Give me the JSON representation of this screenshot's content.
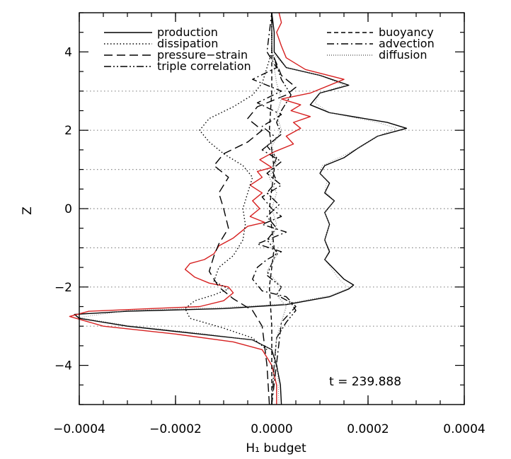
{
  "chart_data": {
    "type": "line",
    "xlabel": "H₁ budget",
    "ylabel": "Z",
    "xlim": [
      -0.0004,
      0.0004
    ],
    "ylim": [
      -5,
      5
    ],
    "x_ticks": [
      -0.0004,
      -0.0002,
      0.0,
      0.0002,
      0.0004
    ],
    "x_tick_labels": [
      "−0.0004",
      "−0.0002",
      "0.0000",
      "0.0002",
      "0.0004"
    ],
    "y_ticks": [
      -4,
      -2,
      0,
      2,
      4
    ],
    "y_tick_labels": [
      "−4",
      "−2",
      "0",
      "2",
      "4"
    ],
    "reference_lines_z": [
      -3,
      -2,
      -1,
      0,
      1,
      2,
      3
    ],
    "annotation": "t  =  239.888",
    "legend_placement": "top",
    "legend": [
      {
        "name": "production",
        "dash": "solid",
        "column": "left"
      },
      {
        "name": "dissipation",
        "dash": "dotted",
        "column": "left"
      },
      {
        "name": "pressure−strain",
        "dash": "long-dash",
        "column": "left"
      },
      {
        "name": "triple correlation",
        "dash": "dash-dot-dot",
        "column": "left"
      },
      {
        "name": "buoyancy",
        "dash": "short-dash",
        "column": "right"
      },
      {
        "name": "advection",
        "dash": "dash-dot",
        "column": "right"
      },
      {
        "name": "diffusion",
        "dash": "fine-dotted",
        "column": "right"
      }
    ],
    "series": [
      {
        "key": "production",
        "color": "#000000",
        "dash": "solid",
        "points": [
          [
            2e-05,
            -5.0
          ],
          [
            1.8e-05,
            -4.5
          ],
          [
            1e-05,
            -4.0
          ],
          [
            0.0,
            -3.6
          ],
          [
            -4e-05,
            -3.35
          ],
          [
            -0.00015,
            -3.2
          ],
          [
            -0.0003,
            -3.0
          ],
          [
            -0.0004,
            -2.8
          ],
          [
            -0.00041,
            -2.7
          ],
          [
            -0.0003,
            -2.62
          ],
          [
            -0.0001,
            -2.55
          ],
          [
            3e-05,
            -2.45
          ],
          [
            0.00012,
            -2.25
          ],
          [
            0.00016,
            -2.05
          ],
          [
            0.00017,
            -1.95
          ],
          [
            0.00015,
            -1.8
          ],
          [
            0.00011,
            -1.3
          ],
          [
            0.00012,
            -1.1
          ],
          [
            0.00011,
            -0.8
          ],
          [
            0.00012,
            -0.4
          ],
          [
            0.00011,
            -0.1
          ],
          [
            0.00013,
            0.2
          ],
          [
            0.00011,
            0.4
          ],
          [
            0.00012,
            0.65
          ],
          [
            0.0001,
            0.9
          ],
          [
            0.00011,
            1.1
          ],
          [
            0.00015,
            1.3
          ],
          [
            0.00018,
            1.55
          ],
          [
            0.00022,
            1.85
          ],
          [
            0.00028,
            2.05
          ],
          [
            0.00024,
            2.2
          ],
          [
            0.00012,
            2.45
          ],
          [
            8e-05,
            2.65
          ],
          [
            0.0001,
            2.95
          ],
          [
            0.00016,
            3.15
          ],
          [
            0.0001,
            3.4
          ],
          [
            3e-05,
            3.6
          ],
          [
            5e-06,
            4.0
          ],
          [
            5e-06,
            4.5
          ],
          [
            0.0,
            5.0
          ]
        ]
      },
      {
        "key": "production-alt",
        "color": "#777777",
        "dash": "fine-dotted",
        "width": 0.8,
        "points": [
          [
            1.5e-05,
            -5.0
          ],
          [
            1.2e-05,
            -4.0
          ],
          [
            0.0,
            -3.6
          ],
          [
            -4e-05,
            -3.35
          ],
          [
            -0.00015,
            -3.18
          ],
          [
            -0.0003,
            -2.98
          ],
          [
            -0.0004,
            -2.78
          ],
          [
            -0.0003,
            -2.6
          ],
          [
            -0.0001,
            -2.52
          ],
          [
            3e-05,
            -2.43
          ],
          [
            0.00012,
            -2.22
          ],
          [
            0.00016,
            -2.03
          ],
          [
            0.00014,
            -1.8
          ],
          [
            0.00011,
            -1.3
          ],
          [
            0.00012,
            -1.05
          ],
          [
            0.00011,
            -0.8
          ],
          [
            0.00012,
            -0.4
          ],
          [
            0.00011,
            -0.1
          ],
          [
            0.00013,
            0.2
          ],
          [
            0.00011,
            0.45
          ],
          [
            0.000115,
            0.7
          ],
          [
            0.0001,
            0.9
          ],
          [
            0.000105,
            1.1
          ],
          [
            0.00014,
            1.3
          ],
          [
            0.00018,
            1.55
          ],
          [
            0.00022,
            1.85
          ],
          [
            0.00026,
            2.05
          ],
          [
            0.00022,
            2.2
          ],
          [
            0.00012,
            2.45
          ],
          [
            9e-05,
            2.7
          ],
          [
            0.0001,
            2.95
          ],
          [
            0.00015,
            3.15
          ],
          [
            0.0001,
            3.4
          ],
          [
            3e-05,
            3.6
          ],
          [
            0.0,
            4.0
          ],
          [
            0.0,
            5.0
          ]
        ]
      },
      {
        "key": "production-red",
        "color": "#d62020",
        "dash": "solid",
        "points": [
          [
            1e-05,
            -5.0
          ],
          [
            1e-05,
            -4.5
          ],
          [
            0.0,
            -4.0
          ],
          [
            -2e-05,
            -3.6
          ],
          [
            -8e-05,
            -3.4
          ],
          [
            -0.0002,
            -3.2
          ],
          [
            -0.00035,
            -3.0
          ],
          [
            -0.00042,
            -2.75
          ],
          [
            -0.00038,
            -2.62
          ],
          [
            -0.00025,
            -2.55
          ],
          [
            -0.00015,
            -2.5
          ],
          [
            -0.0001,
            -2.35
          ],
          [
            -8e-05,
            -2.15
          ],
          [
            -9e-05,
            -2.0
          ],
          [
            -0.00013,
            -1.9
          ],
          [
            -0.00016,
            -1.75
          ],
          [
            -0.00018,
            -1.55
          ],
          [
            -0.00017,
            -1.4
          ],
          [
            -0.00014,
            -1.3
          ],
          [
            -0.00012,
            -1.15
          ],
          [
            -0.00011,
            -0.95
          ],
          [
            -8e-05,
            -0.75
          ],
          [
            -5e-05,
            -0.45
          ],
          [
            -1.5e-05,
            -0.35
          ],
          [
            -4.5e-05,
            -0.2
          ],
          [
            -2.5e-05,
            0.0
          ],
          [
            -4e-05,
            0.2
          ],
          [
            -2e-05,
            0.4
          ],
          [
            -4.5e-05,
            0.6
          ],
          [
            -2e-05,
            0.8
          ],
          [
            -3e-05,
            0.95
          ],
          [
            0.0,
            1.05
          ],
          [
            -2.5e-05,
            1.25
          ],
          [
            5e-06,
            1.45
          ],
          [
            4.5e-05,
            1.65
          ],
          [
            3e-05,
            1.85
          ],
          [
            6e-05,
            2.05
          ],
          [
            4.5e-05,
            2.2
          ],
          [
            8e-05,
            2.35
          ],
          [
            4e-05,
            2.5
          ],
          [
            6e-05,
            2.65
          ],
          [
            2e-05,
            2.8
          ],
          [
            8e-05,
            2.95
          ],
          [
            0.00015,
            3.3
          ],
          [
            7e-05,
            3.55
          ],
          [
            3e-05,
            3.85
          ],
          [
            2e-05,
            4.15
          ],
          [
            1e-05,
            4.5
          ],
          [
            2e-05,
            4.75
          ],
          [
            1.5e-05,
            5.0
          ]
        ]
      },
      {
        "key": "dissipation",
        "color": "#000000",
        "dash": "dotted",
        "points": [
          [
            -1e-05,
            -3.6
          ],
          [
            -4e-05,
            -3.3
          ],
          [
            -0.0001,
            -3.05
          ],
          [
            -0.00017,
            -2.8
          ],
          [
            -0.00018,
            -2.55
          ],
          [
            -0.00016,
            -2.35
          ],
          [
            -0.00012,
            -2.2
          ],
          [
            -9e-05,
            -2.05
          ],
          [
            -0.00012,
            -1.85
          ],
          [
            -0.00011,
            -1.5
          ],
          [
            -8e-05,
            -1.2
          ],
          [
            -6e-05,
            -0.8
          ],
          [
            -5.5e-05,
            -0.4
          ],
          [
            -6e-05,
            0.0
          ],
          [
            -5e-05,
            0.4
          ],
          [
            -4e-05,
            0.8
          ],
          [
            -6e-05,
            1.1
          ],
          [
            -0.0001,
            1.4
          ],
          [
            -0.00013,
            1.7
          ],
          [
            -0.00015,
            2.0
          ],
          [
            -0.00013,
            2.3
          ],
          [
            -8e-05,
            2.6
          ],
          [
            -4e-05,
            2.9
          ],
          [
            -2e-05,
            3.2
          ],
          [
            -1e-05,
            3.6
          ],
          [
            0.0,
            4.0
          ]
        ]
      },
      {
        "key": "pressure-strain",
        "color": "#000000",
        "dash": "long-dash",
        "points": [
          [
            -5e-06,
            -5.0
          ],
          [
            -1e-05,
            -4.0
          ],
          [
            -2e-05,
            -3.0
          ],
          [
            -4e-05,
            -2.6
          ],
          [
            -8e-05,
            -2.3
          ],
          [
            -0.00011,
            -2.0
          ],
          [
            -0.00013,
            -1.6
          ],
          [
            -0.00012,
            -1.2
          ],
          [
            -0.00011,
            -0.9
          ],
          [
            -9e-05,
            -0.5
          ],
          [
            -0.0001,
            0.0
          ],
          [
            -0.00011,
            0.4
          ],
          [
            -9e-05,
            0.8
          ],
          [
            -0.00012,
            1.1
          ],
          [
            -0.0001,
            1.4
          ],
          [
            -5e-05,
            1.7
          ],
          [
            -2e-05,
            2.0
          ],
          [
            -5e-05,
            2.3
          ],
          [
            -3e-05,
            2.6
          ],
          [
            3e-05,
            2.9
          ],
          [
            5e-05,
            3.1
          ],
          [
            2e-05,
            3.4
          ],
          [
            0.0,
            4.0
          ],
          [
            0.0,
            5.0
          ]
        ]
      },
      {
        "key": "triple correlation",
        "color": "#000000",
        "dash": "dash-dot-dot",
        "points": [
          [
            0.0,
            -5.0
          ],
          [
            5e-06,
            -4.0
          ],
          [
            1e-05,
            -3.3
          ],
          [
            3e-05,
            -2.9
          ],
          [
            5e-05,
            -2.6
          ],
          [
            4e-05,
            -2.4
          ],
          [
            1e-05,
            -2.2
          ],
          [
            2e-05,
            -2.0
          ],
          [
            -1e-05,
            -1.7
          ],
          [
            0.0,
            -1.4
          ],
          [
            1e-05,
            -1.1
          ],
          [
            -1e-05,
            -0.8
          ],
          [
            1e-05,
            -0.5
          ],
          [
            -1e-05,
            -0.2
          ],
          [
            1.5e-05,
            0.1
          ],
          [
            -1e-05,
            0.4
          ],
          [
            1e-05,
            0.7
          ],
          [
            0.0,
            1.0
          ],
          [
            1e-05,
            1.3
          ],
          [
            -1e-05,
            1.6
          ],
          [
            2e-05,
            1.9
          ],
          [
            1e-05,
            2.2
          ],
          [
            2e-05,
            2.5
          ],
          [
            4e-05,
            2.9
          ],
          [
            2e-05,
            3.3
          ],
          [
            0.0,
            4.0
          ],
          [
            0.0,
            5.0
          ]
        ]
      },
      {
        "key": "buoyancy",
        "color": "#000000",
        "dash": "short-dash",
        "points": [
          [
            0.0,
            -5.0
          ],
          [
            0.0,
            -4.0
          ],
          [
            0.0,
            -3.0
          ],
          [
            -5e-06,
            -2.0
          ],
          [
            5e-06,
            -1.0
          ],
          [
            -5e-06,
            0.0
          ],
          [
            5e-06,
            1.0
          ],
          [
            -5e-06,
            2.0
          ],
          [
            0.0,
            3.0
          ],
          [
            0.0,
            4.0
          ],
          [
            0.0,
            5.0
          ]
        ]
      },
      {
        "key": "advection",
        "color": "#000000",
        "dash": "dash-dot",
        "points": [
          [
            0.0,
            -5.0
          ],
          [
            2e-05,
            -2.9
          ],
          [
            5e-05,
            -2.5
          ],
          [
            3e-05,
            -2.25
          ],
          [
            -2e-05,
            -2.1
          ],
          [
            -4e-05,
            -1.8
          ],
          [
            -3e-05,
            -1.5
          ],
          [
            -1e-05,
            -1.3
          ],
          [
            2e-05,
            -1.1
          ],
          [
            -3e-05,
            -0.9
          ],
          [
            3e-05,
            -0.6
          ],
          [
            -2e-05,
            -0.4
          ],
          [
            2e-05,
            -0.2
          ],
          [
            0.0,
            0.0
          ],
          [
            -2e-05,
            0.3
          ],
          [
            2e-05,
            0.6
          ],
          [
            -1e-05,
            0.9
          ],
          [
            2e-05,
            1.2
          ],
          [
            -2e-05,
            1.5
          ],
          [
            1e-05,
            1.8
          ],
          [
            -2e-05,
            2.1
          ],
          [
            2e-05,
            2.4
          ],
          [
            -3e-05,
            2.7
          ],
          [
            2e-05,
            3.0
          ],
          [
            -4e-05,
            3.3
          ],
          [
            1e-05,
            3.6
          ],
          [
            -1e-05,
            4.0
          ],
          [
            0.0,
            5.0
          ]
        ]
      },
      {
        "key": "diffusion",
        "color": "#888888",
        "dash": "fine-dotted",
        "points": [
          [
            0.0,
            -5.0
          ],
          [
            1e-05,
            -3.3
          ],
          [
            2e-05,
            -2.9
          ],
          [
            3e-05,
            -2.5
          ],
          [
            1e-05,
            -2.2
          ],
          [
            2e-05,
            -2.0
          ],
          [
            -1e-05,
            -1.6
          ],
          [
            1e-05,
            -1.2
          ],
          [
            0.0,
            -0.8
          ],
          [
            1e-05,
            -0.4
          ],
          [
            0.0,
            0.0
          ],
          [
            1e-05,
            0.4
          ],
          [
            -5e-06,
            0.8
          ],
          [
            1e-05,
            1.2
          ],
          [
            0.0,
            1.6
          ],
          [
            2e-05,
            2.0
          ],
          [
            1e-05,
            2.4
          ],
          [
            2e-05,
            2.8
          ],
          [
            1e-05,
            3.2
          ],
          [
            0.0,
            4.0
          ],
          [
            0.0,
            5.0
          ]
        ]
      }
    ]
  }
}
